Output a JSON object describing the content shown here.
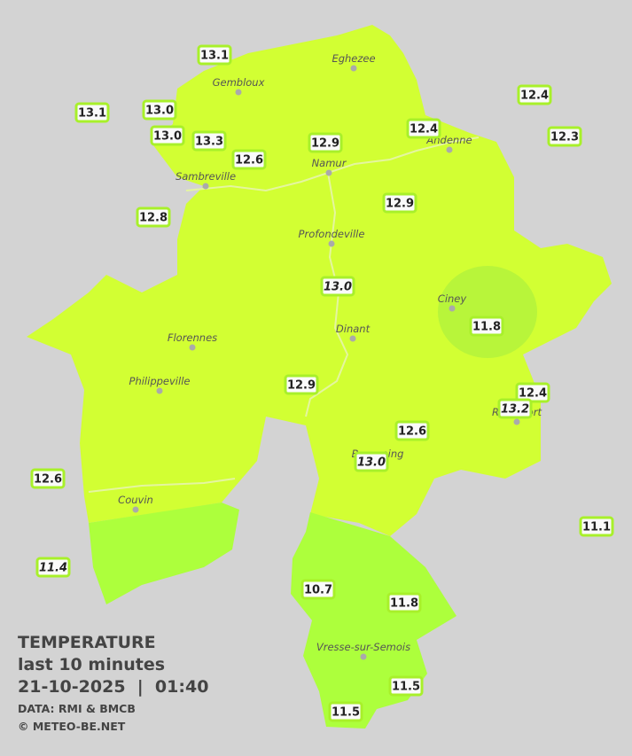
{
  "title": "TEMPERATURE",
  "subtitle": "last 10 minutes",
  "datetime": "21-10-2025  |  01:40",
  "source": "DATA: RMI & BMCB",
  "credit": "© METEO-BE.NET",
  "towns": [
    {
      "name": "Eghezee"
    },
    {
      "name": "Gembloux"
    },
    {
      "name": "Andenne"
    },
    {
      "name": "Namur"
    },
    {
      "name": "Sambreville"
    },
    {
      "name": "Profondeville"
    },
    {
      "name": "Ciney"
    },
    {
      "name": "Dinant"
    },
    {
      "name": "Florennes"
    },
    {
      "name": "Philippeville"
    },
    {
      "name": "Rochefort"
    },
    {
      "name": "Beauraing"
    },
    {
      "name": "Couvin"
    },
    {
      "name": "Vresse-sur-Semois"
    }
  ],
  "stations": [
    {
      "temp": "13.1"
    },
    {
      "temp": "13.1"
    },
    {
      "temp": "13.0"
    },
    {
      "temp": "13.0"
    },
    {
      "temp": "13.3"
    },
    {
      "temp": "12.6"
    },
    {
      "temp": "12.9"
    },
    {
      "temp": "12.4"
    },
    {
      "temp": "12.4"
    },
    {
      "temp": "12.3"
    },
    {
      "temp": "12.8"
    },
    {
      "temp": "12.9"
    },
    {
      "temp": "13.0",
      "italic": true
    },
    {
      "temp": "11.8"
    },
    {
      "temp": "12.9"
    },
    {
      "temp": "12.4"
    },
    {
      "temp": "13.2",
      "italic": true
    },
    {
      "temp": "12.6"
    },
    {
      "temp": "13.0",
      "italic": true
    },
    {
      "temp": "12.6"
    },
    {
      "temp": "11.1"
    },
    {
      "temp": "11.4",
      "italic": true
    },
    {
      "temp": "10.7"
    },
    {
      "temp": "11.8"
    },
    {
      "temp": "11.5"
    },
    {
      "temp": "11.5"
    }
  ]
}
